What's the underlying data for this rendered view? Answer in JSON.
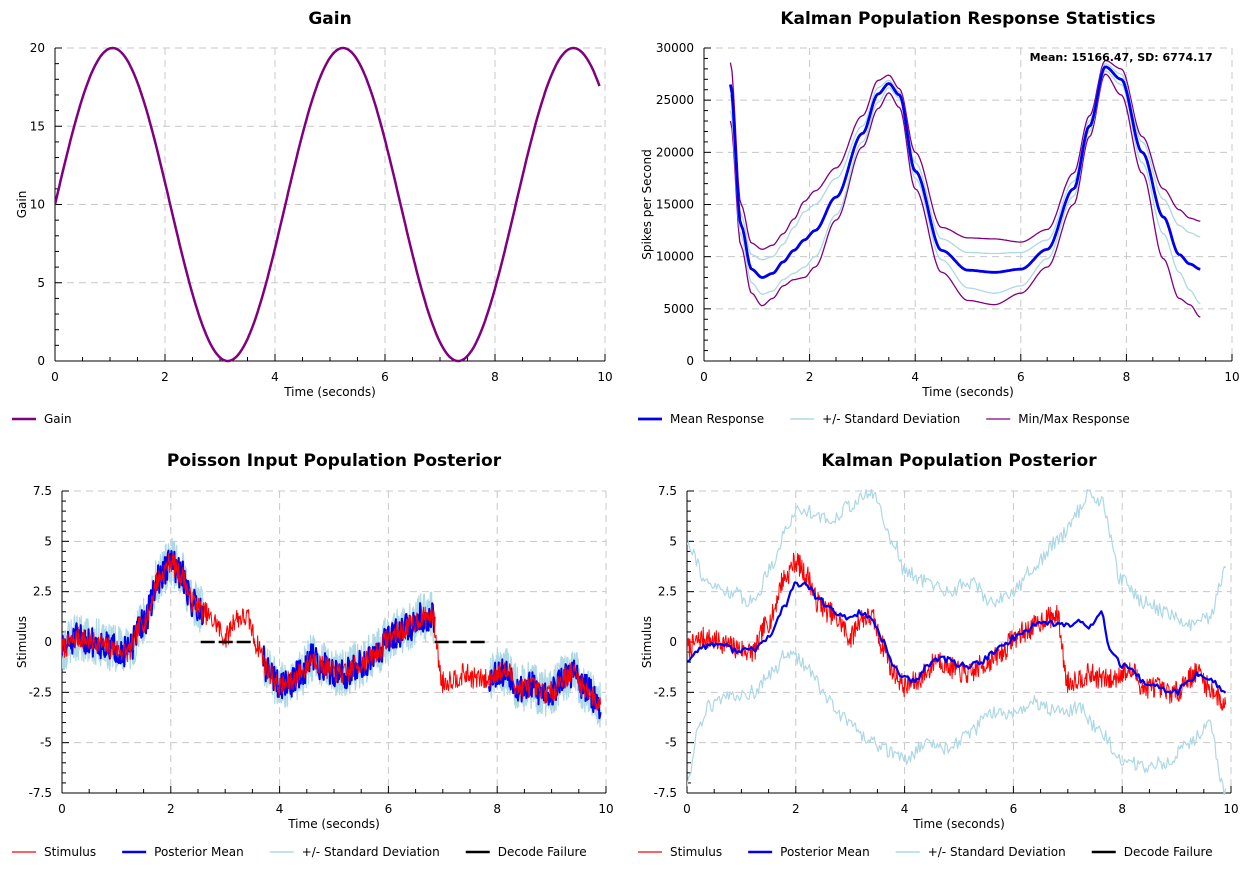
{
  "chart_data": [
    {
      "id": "gain",
      "type": "line",
      "title": "Gain",
      "xlabel": "Time (seconds)",
      "ylabel": "Gain",
      "xlim": [
        0,
        10
      ],
      "ylim": [
        0,
        20
      ],
      "xticks": [
        0,
        2,
        4,
        6,
        8,
        10
      ],
      "yticks": [
        0,
        5,
        10,
        15,
        20
      ],
      "xtick_labels": [
        "0",
        "2",
        "4",
        "6",
        "8",
        "10"
      ],
      "ytick_labels": [
        "0",
        "5",
        "10",
        "15",
        "20"
      ],
      "grid": true,
      "series": [
        {
          "name": "Gain",
          "color": "#800080",
          "width": 2.5,
          "function": "10 + 10*sin(1.5*t)",
          "x_range": [
            0,
            9.9
          ]
        }
      ],
      "legend": [
        {
          "label": "Gain",
          "color": "#800080",
          "width": 2.5
        }
      ]
    },
    {
      "id": "kalman_stats",
      "type": "line",
      "title": "Kalman Population Response Statistics",
      "annotation": "Mean: 15166.47, SD: 6774.17",
      "xlabel": "Time (seconds)",
      "ylabel": "Spikes per Second",
      "xlim": [
        0,
        10
      ],
      "ylim": [
        0,
        30000
      ],
      "xticks": [
        0,
        2,
        4,
        6,
        8,
        10
      ],
      "yticks": [
        0,
        5000,
        10000,
        15000,
        20000,
        25000,
        30000
      ],
      "xtick_labels": [
        "0",
        "2",
        "4",
        "6",
        "8",
        "10"
      ],
      "ytick_labels": [
        "0",
        "5000",
        "10000",
        "15000",
        "20000",
        "25000",
        "30000"
      ],
      "grid": true,
      "series": [
        {
          "name": "Min Response",
          "color": "#800080",
          "width": 1.3,
          "x": [
            0.5,
            0.7,
            0.9,
            1.1,
            1.3,
            1.5,
            1.7,
            1.9,
            2.1,
            2.5,
            3.0,
            3.3,
            3.5,
            3.7,
            4.0,
            4.5,
            5.0,
            5.5,
            6.0,
            6.5,
            7.0,
            7.3,
            7.6,
            7.9,
            8.3,
            8.7,
            9.0,
            9.2,
            9.4
          ],
          "y": [
            23000,
            11000,
            6500,
            5300,
            6000,
            7200,
            7800,
            8000,
            9000,
            13500,
            20500,
            24200,
            25700,
            24300,
            16500,
            8500,
            5800,
            5400,
            6500,
            9000,
            15000,
            21500,
            27500,
            25500,
            18000,
            9800,
            6000,
            5400,
            4200
          ]
        },
        {
          "name": "Max Response",
          "color": "#800080",
          "width": 1.3,
          "x": [
            0.5,
            0.7,
            0.9,
            1.1,
            1.3,
            1.5,
            1.7,
            1.9,
            2.1,
            2.5,
            3.0,
            3.3,
            3.5,
            3.7,
            4.0,
            4.5,
            5.0,
            5.5,
            6.0,
            6.5,
            7.0,
            7.3,
            7.6,
            7.9,
            8.3,
            8.7,
            9.0,
            9.2,
            9.4
          ],
          "y": [
            28600,
            15000,
            11300,
            10700,
            11100,
            12200,
            13600,
            15300,
            16300,
            18500,
            23500,
            26900,
            27400,
            26100,
            20000,
            12800,
            11800,
            11700,
            11400,
            12600,
            18000,
            23500,
            28800,
            28000,
            21500,
            16500,
            14500,
            13700,
            13400
          ]
        },
        {
          "name": "+/- Standard Deviation",
          "color": "#add8e6",
          "width": 1.3,
          "x": [
            0.5,
            0.7,
            0.9,
            1.1,
            1.3,
            1.5,
            1.7,
            1.9,
            2.1,
            2.5,
            3.0,
            3.3,
            3.5,
            3.7,
            4.0,
            4.5,
            5.0,
            5.5,
            6.0,
            6.5,
            7.0,
            7.3,
            7.6,
            7.9,
            8.3,
            8.7,
            9.0,
            9.2,
            9.4
          ],
          "y": [
            24000,
            12000,
            7500,
            6400,
            6700,
            7800,
            8400,
            9000,
            10000,
            14000,
            21000,
            24800,
            26200,
            25200,
            17500,
            9700,
            7000,
            6500,
            7200,
            9800,
            15800,
            22000,
            27800,
            26500,
            19000,
            12200,
            8500,
            6800,
            5500
          ]
        },
        {
          "name": "+/- Standard Deviation",
          "color": "#add8e6",
          "width": 1.3,
          "x": [
            0.5,
            0.7,
            0.9,
            1.1,
            1.3,
            1.5,
            1.7,
            1.9,
            2.1,
            2.5,
            3.0,
            3.3,
            3.5,
            3.7,
            4.0,
            4.5,
            5.0,
            5.5,
            6.0,
            6.5,
            7.0,
            7.3,
            7.6,
            7.9,
            8.3,
            8.7,
            9.0,
            9.2,
            9.4
          ],
          "y": [
            25500,
            14000,
            10200,
            9700,
            10000,
            11200,
            12800,
            14300,
            15000,
            17500,
            22500,
            26200,
            26900,
            25800,
            19000,
            11700,
            10400,
            10300,
            10400,
            11600,
            17200,
            23000,
            28500,
            27500,
            21000,
            15500,
            13000,
            12300,
            11900
          ]
        },
        {
          "name": "Mean Response",
          "color": "#0000ee",
          "width": 2.8,
          "x": [
            0.5,
            0.7,
            0.9,
            1.1,
            1.3,
            1.5,
            1.7,
            1.9,
            2.1,
            2.5,
            3.0,
            3.3,
            3.5,
            3.7,
            4.0,
            4.5,
            5.0,
            5.5,
            6.0,
            6.5,
            7.0,
            7.3,
            7.6,
            7.9,
            8.3,
            8.7,
            9.0,
            9.2,
            9.4
          ],
          "y": [
            26500,
            13000,
            8800,
            8000,
            8400,
            9500,
            10600,
            11600,
            12500,
            15700,
            21800,
            25600,
            26600,
            25500,
            18200,
            10600,
            8700,
            8500,
            8800,
            10700,
            16500,
            22500,
            28200,
            27000,
            20000,
            13800,
            10200,
            9300,
            8800
          ]
        }
      ],
      "legend": [
        {
          "label": "Mean Response",
          "color": "#0000ee",
          "width": 2.8
        },
        {
          "label": "+/- Standard Deviation",
          "color": "#add8e6",
          "width": 1.5
        },
        {
          "label": "Min/Max Response",
          "color": "#800080",
          "width": 1.3
        }
      ]
    },
    {
      "id": "poisson_posterior",
      "type": "line",
      "title": "Poisson Input Population Posterior",
      "xlabel": "Time (seconds)",
      "ylabel": "Stimulus",
      "xlim": [
        0,
        10
      ],
      "ylim": [
        -7.5,
        7.5
      ],
      "xticks": [
        0,
        2,
        4,
        6,
        8,
        10
      ],
      "yticks": [
        -7.5,
        -5,
        -2.5,
        0,
        2.5,
        5,
        7.5
      ],
      "xtick_labels": [
        "0",
        "2",
        "4",
        "6",
        "8",
        "10"
      ],
      "ytick_labels": [
        "-7.5",
        "-5",
        "-2.5",
        "0",
        "2.5",
        "5",
        "7.5"
      ],
      "grid": true,
      "stimulus_knots": {
        "x": [
          0,
          0.3,
          0.6,
          0.9,
          1.2,
          1.5,
          1.8,
          2.0,
          2.2,
          2.4,
          2.6,
          2.8,
          3.0,
          3.2,
          3.4,
          3.6,
          3.8,
          4.0,
          4.2,
          4.4,
          4.6,
          4.8,
          5.0,
          5.2,
          5.4,
          5.6,
          5.8,
          6.0,
          6.2,
          6.4,
          6.6,
          6.8,
          7.0,
          7.2,
          7.4,
          7.6,
          7.8,
          8.0,
          8.2,
          8.4,
          8.6,
          8.8,
          9.0,
          9.2,
          9.4,
          9.6,
          9.9
        ],
        "y": [
          -0.3,
          0.2,
          0,
          -0.3,
          -0.5,
          1.0,
          3.2,
          4.0,
          3.3,
          2.0,
          1.5,
          1.0,
          0.2,
          1.2,
          1.2,
          -0.2,
          -1.5,
          -2.2,
          -2.0,
          -1.5,
          -0.8,
          -1.2,
          -1.5,
          -1.6,
          -1.2,
          -0.9,
          -0.5,
          0.2,
          0.5,
          0.8,
          1.2,
          1.3,
          -2.0,
          -1.8,
          -1.6,
          -1.8,
          -1.9,
          -1.5,
          -1.5,
          -2.3,
          -2.2,
          -2.5,
          -2.5,
          -1.8,
          -1.5,
          -2.3,
          -3.1
        ]
      },
      "series": [
        {
          "name": "+/- Standard Deviation",
          "color": "#add8e6",
          "width": 1.2,
          "derived": "stimulus + noise, amplitude 1.2"
        },
        {
          "name": "Posterior Mean",
          "color": "#0000ee",
          "width": 2.0,
          "derived": "stimulus + noise, amplitude 0.8"
        },
        {
          "name": "Stimulus",
          "color": "#ff0000",
          "width": 1.0,
          "derived": "stimulus knots + noise, amplitude 0.55"
        }
      ],
      "gaps": [
        [
          2.6,
          3.7
        ],
        [
          6.85,
          7.85
        ]
      ],
      "decode_failures": {
        "value": 0,
        "segments": [
          [
            2.55,
            3.55
          ],
          [
            6.85,
            7.8
          ]
        ]
      },
      "legend": [
        {
          "label": "Stimulus",
          "color": "#ff0000",
          "width": 1.2
        },
        {
          "label": "Posterior Mean",
          "color": "#0000ee",
          "width": 2.5
        },
        {
          "label": "+/- Standard Deviation",
          "color": "#add8e6",
          "width": 1.5
        },
        {
          "label": "Decode Failure",
          "color": "#000000",
          "width": 2.5
        }
      ]
    },
    {
      "id": "kalman_posterior",
      "type": "line",
      "title": "Kalman Population Posterior",
      "xlabel": "Time (seconds)",
      "ylabel": "Stimulus",
      "xlim": [
        0,
        10
      ],
      "ylim": [
        -7.5,
        7.5
      ],
      "xticks": [
        0,
        2,
        4,
        6,
        8,
        10
      ],
      "yticks": [
        -7.5,
        -5,
        -2.5,
        0,
        2.5,
        5,
        7.5
      ],
      "xtick_labels": [
        "0",
        "2",
        "4",
        "6",
        "8",
        "10"
      ],
      "ytick_labels": [
        "-7.5",
        "-5",
        "-2.5",
        "0",
        "2.5",
        "5",
        "7.5"
      ],
      "grid": true,
      "stimulus_knots": {
        "x": [
          0,
          0.3,
          0.6,
          0.9,
          1.2,
          1.5,
          1.8,
          2.0,
          2.2,
          2.4,
          2.6,
          2.8,
          3.0,
          3.2,
          3.4,
          3.6,
          3.8,
          4.0,
          4.2,
          4.4,
          4.6,
          4.8,
          5.0,
          5.2,
          5.4,
          5.6,
          5.8,
          6.0,
          6.2,
          6.4,
          6.6,
          6.8,
          7.0,
          7.2,
          7.4,
          7.6,
          7.8,
          8.0,
          8.2,
          8.4,
          8.6,
          8.8,
          9.0,
          9.2,
          9.4,
          9.6,
          9.9
        ],
        "y": [
          -0.3,
          0.2,
          0,
          -0.3,
          -0.5,
          1.0,
          3.2,
          4.0,
          3.3,
          2.0,
          1.5,
          1.0,
          0.2,
          1.2,
          1.2,
          -0.2,
          -1.5,
          -2.2,
          -2.0,
          -1.5,
          -0.8,
          -1.2,
          -1.5,
          -1.6,
          -1.2,
          -0.9,
          -0.5,
          0.2,
          0.5,
          0.8,
          1.2,
          1.3,
          -2.0,
          -1.8,
          -1.6,
          -1.8,
          -1.9,
          -1.5,
          -1.5,
          -2.3,
          -2.2,
          -2.5,
          -2.5,
          -1.8,
          -1.5,
          -2.3,
          -3.1
        ]
      },
      "mean_knots": {
        "x": [
          0,
          0.3,
          0.6,
          0.9,
          1.2,
          1.5,
          1.8,
          2.0,
          2.2,
          2.4,
          2.6,
          2.8,
          3.0,
          3.2,
          3.4,
          3.6,
          3.8,
          4.0,
          4.2,
          4.4,
          4.6,
          4.8,
          5.0,
          5.2,
          5.4,
          5.6,
          5.8,
          6.0,
          6.2,
          6.4,
          6.6,
          6.8,
          7.0,
          7.2,
          7.4,
          7.6,
          7.8,
          8.0,
          8.2,
          8.4,
          8.6,
          8.8,
          9.0,
          9.2,
          9.4,
          9.6,
          9.9
        ],
        "y": [
          -0.9,
          -0.2,
          -0.1,
          -0.4,
          -0.4,
          0.2,
          1.8,
          2.9,
          2.8,
          2.2,
          1.7,
          1.3,
          1.2,
          1.5,
          1.1,
          0.0,
          -1.2,
          -1.8,
          -2.0,
          -1.2,
          -0.8,
          -0.9,
          -1.1,
          -1.2,
          -1.0,
          -0.6,
          -0.2,
          0.2,
          0.5,
          0.9,
          1.0,
          0.9,
          0.8,
          1.0,
          0.8,
          1.5,
          -0.5,
          -1.2,
          -1.5,
          -2.0,
          -2.2,
          -2.4,
          -2.5,
          -2.0,
          -1.6,
          -1.8,
          -2.5
        ]
      },
      "std_upper_knots": {
        "x": [
          0,
          0.4,
          0.8,
          1.2,
          1.6,
          1.8,
          2.0,
          2.3,
          2.6,
          3.0,
          3.4,
          3.8,
          4.0,
          4.4,
          4.8,
          5.2,
          5.6,
          6.0,
          6.4,
          6.8,
          7.2,
          7.4,
          7.6,
          8.0,
          8.4,
          8.8,
          9.2,
          9.6,
          9.9
        ],
        "y": [
          5.0,
          2.8,
          2.5,
          2.0,
          4.0,
          5.5,
          6.5,
          6.5,
          6.0,
          6.8,
          7.4,
          5.0,
          3.5,
          3.0,
          2.5,
          3.0,
          2.0,
          2.5,
          3.8,
          5.0,
          6.5,
          7.4,
          7.0,
          3.0,
          2.0,
          1.5,
          0.8,
          1.2,
          3.5
        ]
      },
      "std_lower_knots": {
        "x": [
          0,
          0.2,
          0.4,
          0.8,
          1.2,
          1.6,
          1.8,
          2.0,
          2.3,
          2.6,
          3.0,
          3.4,
          3.8,
          4.0,
          4.4,
          4.8,
          5.2,
          5.6,
          6.0,
          6.4,
          6.8,
          7.2,
          7.6,
          8.0,
          8.4,
          8.8,
          9.2,
          9.6,
          9.9
        ],
        "y": [
          -7.0,
          -4.5,
          -3.2,
          -2.8,
          -2.5,
          -1.5,
          -0.5,
          -0.8,
          -1.5,
          -3.0,
          -4.0,
          -5.0,
          -5.5,
          -5.8,
          -5.0,
          -5.3,
          -4.5,
          -3.5,
          -3.5,
          -3.0,
          -3.5,
          -3.3,
          -4.5,
          -5.8,
          -6.2,
          -6.0,
          -5.0,
          -4.2,
          -7.5
        ]
      },
      "series": [
        {
          "name": "+/- Standard Deviation",
          "color": "#add8e6",
          "width": 1.2
        },
        {
          "name": "Stimulus",
          "color": "#ff0000",
          "width": 1.0
        },
        {
          "name": "Posterior Mean",
          "color": "#0000ee",
          "width": 2.2
        }
      ],
      "legend": [
        {
          "label": "Stimulus",
          "color": "#ff0000",
          "width": 1.2
        },
        {
          "label": "Posterior Mean",
          "color": "#0000ee",
          "width": 2.5
        },
        {
          "label": "+/- Standard Deviation",
          "color": "#add8e6",
          "width": 1.5
        },
        {
          "label": "Decode Failure",
          "color": "#000000",
          "width": 2.5
        }
      ]
    }
  ]
}
